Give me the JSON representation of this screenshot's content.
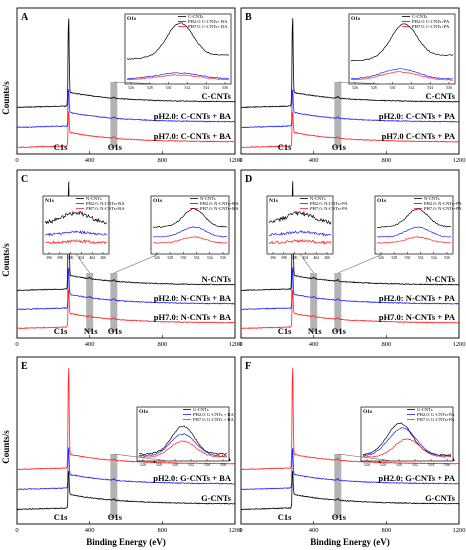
{
  "colors": {
    "black": "#000000",
    "blue": "#1f1fff",
    "red": "#ff1f1f",
    "shade": "#9a9a9a"
  },
  "y_axis_title": "Counts/s",
  "x_axis_title": "Binding Energy (eV)",
  "x_ticks": [
    "0",
    "400",
    "800",
    "1200"
  ],
  "chart_data": [
    {
      "type": "line",
      "panel": "A",
      "xlim": [
        0,
        1200
      ],
      "ylabel": "Counts/s",
      "series": [
        {
          "name": "C-CNTs",
          "color": "#000000"
        },
        {
          "name": "pH2.0: C-CNTs + BA",
          "color": "#1f1fff"
        },
        {
          "name": "pH7.0: C-CNTs + BA",
          "color": "#ff1f1f"
        }
      ],
      "peak_labels": [
        "C1s",
        "O1s"
      ],
      "inset": {
        "title": "O1s",
        "legend": [
          "C-CNTs",
          "PH2.0: C-CNTs+ BA",
          "PH7.0: C-CNTs+ BA"
        ],
        "ticks": [
          "526",
          "528",
          "530",
          "532",
          "534",
          "536"
        ]
      }
    },
    {
      "type": "line",
      "panel": "B",
      "xlim": [
        0,
        1200
      ],
      "series": [
        {
          "name": "C-CNTs",
          "color": "#000000"
        },
        {
          "name": "pH2.0: C-CNTs + PA",
          "color": "#1f1fff"
        },
        {
          "name": "pH7.0 C-CNTs + PA",
          "color": "#ff1f1f"
        }
      ],
      "peak_labels": [
        "C1s",
        "O1s"
      ],
      "inset": {
        "title": "O1s",
        "legend": [
          "C-CNTs",
          "PH2.0: C-CNTs+PA",
          "PH7.0: C-CNTs+PA"
        ],
        "ticks": [
          "526",
          "528",
          "530",
          "532",
          "534",
          "536"
        ]
      }
    },
    {
      "type": "line",
      "panel": "C",
      "xlim": [
        0,
        1200
      ],
      "ylabel": "Counts/s",
      "series": [
        {
          "name": "N-CNTs",
          "color": "#000000"
        },
        {
          "name": "pH2.0: N-CNTs + BA",
          "color": "#1f1fff"
        },
        {
          "name": "pH7.0: N-CNTs + BA",
          "color": "#ff1f1f"
        }
      ],
      "peak_labels": [
        "C1s",
        "N1s",
        "O1s"
      ],
      "insets": [
        {
          "title": "N1s",
          "legend": [
            "N-CNTs",
            "PH2.0: N-CNTs+BA",
            "PH7.0: N-CNTs+BA"
          ],
          "ticks": [
            "396",
            "398",
            "400",
            "402",
            "404",
            "406"
          ]
        },
        {
          "title": "O1s",
          "legend": [
            "N-CNTs",
            "PH2.0: N-CNTs+BA",
            "PH7.0: N-CNTs+BA"
          ],
          "ticks": [
            "526",
            "528",
            "530",
            "532",
            "534",
            "536"
          ]
        }
      ]
    },
    {
      "type": "line",
      "panel": "D",
      "xlim": [
        0,
        1200
      ],
      "series": [
        {
          "name": "N-CNTs",
          "color": "#000000"
        },
        {
          "name": "pH2.0: N-CNTs + PA",
          "color": "#1f1fff"
        },
        {
          "name": "pH7.0: N-CNTs + PA",
          "color": "#ff1f1f"
        }
      ],
      "peak_labels": [
        "C1s",
        "N1s",
        "O1s"
      ],
      "insets": [
        {
          "title": "N1s",
          "legend": [
            "N-CNTs",
            "PH2.0: N-CNTs+PA",
            "PH7.0: N-CNTs+PA"
          ],
          "ticks": [
            "396",
            "398",
            "400",
            "402",
            "404",
            "406"
          ]
        },
        {
          "title": "O1s",
          "legend": [
            "N-CNTs",
            "PH2.0: N-CNTs+PA",
            "PH7.0: N-CNTs+PA"
          ],
          "ticks": [
            "526",
            "528",
            "530",
            "532",
            "534",
            "536"
          ]
        }
      ]
    },
    {
      "type": "line",
      "panel": "E",
      "xlim": [
        0,
        1200
      ],
      "ylabel": "Counts/s",
      "xlabel": "Binding Energy (eV)",
      "series": [
        {
          "name": "pH7.0: G-CNTs + BA",
          "color": "#ff1f1f"
        },
        {
          "name": "pH2.0: G-CNTs + BA",
          "color": "#1f1fff"
        },
        {
          "name": "G-CNTs",
          "color": "#000000"
        }
      ],
      "peak_labels": [
        "C1s",
        "O1s"
      ],
      "inset": {
        "title": "O1s",
        "legend": [
          "G-CNTs",
          "PH2.0: G-CNTs + BA",
          "PH7.0: G-CNTs + BA"
        ],
        "ticks": [
          "526",
          "528",
          "530",
          "532",
          "534",
          "536"
        ]
      }
    },
    {
      "type": "line",
      "panel": "F",
      "xlim": [
        0,
        1200
      ],
      "xlabel": "Binding Energy (eV)",
      "series": [
        {
          "name": "pH7.0: G-CNTs + PA",
          "color": "#ff1f1f"
        },
        {
          "name": "pH2.0: G-CNTs + PA",
          "color": "#1f1fff"
        },
        {
          "name": "G-CNTs",
          "color": "#000000"
        }
      ],
      "peak_labels": [
        "C1s",
        "O1s"
      ],
      "inset": {
        "title": "O1s",
        "legend": [
          "G-CNTs",
          "PH2.0: G-CNTs+PA",
          "PH7.0: G-CNTs+PA"
        ],
        "ticks": [
          "526",
          "528",
          "530",
          "532",
          "534",
          "536"
        ]
      }
    }
  ]
}
